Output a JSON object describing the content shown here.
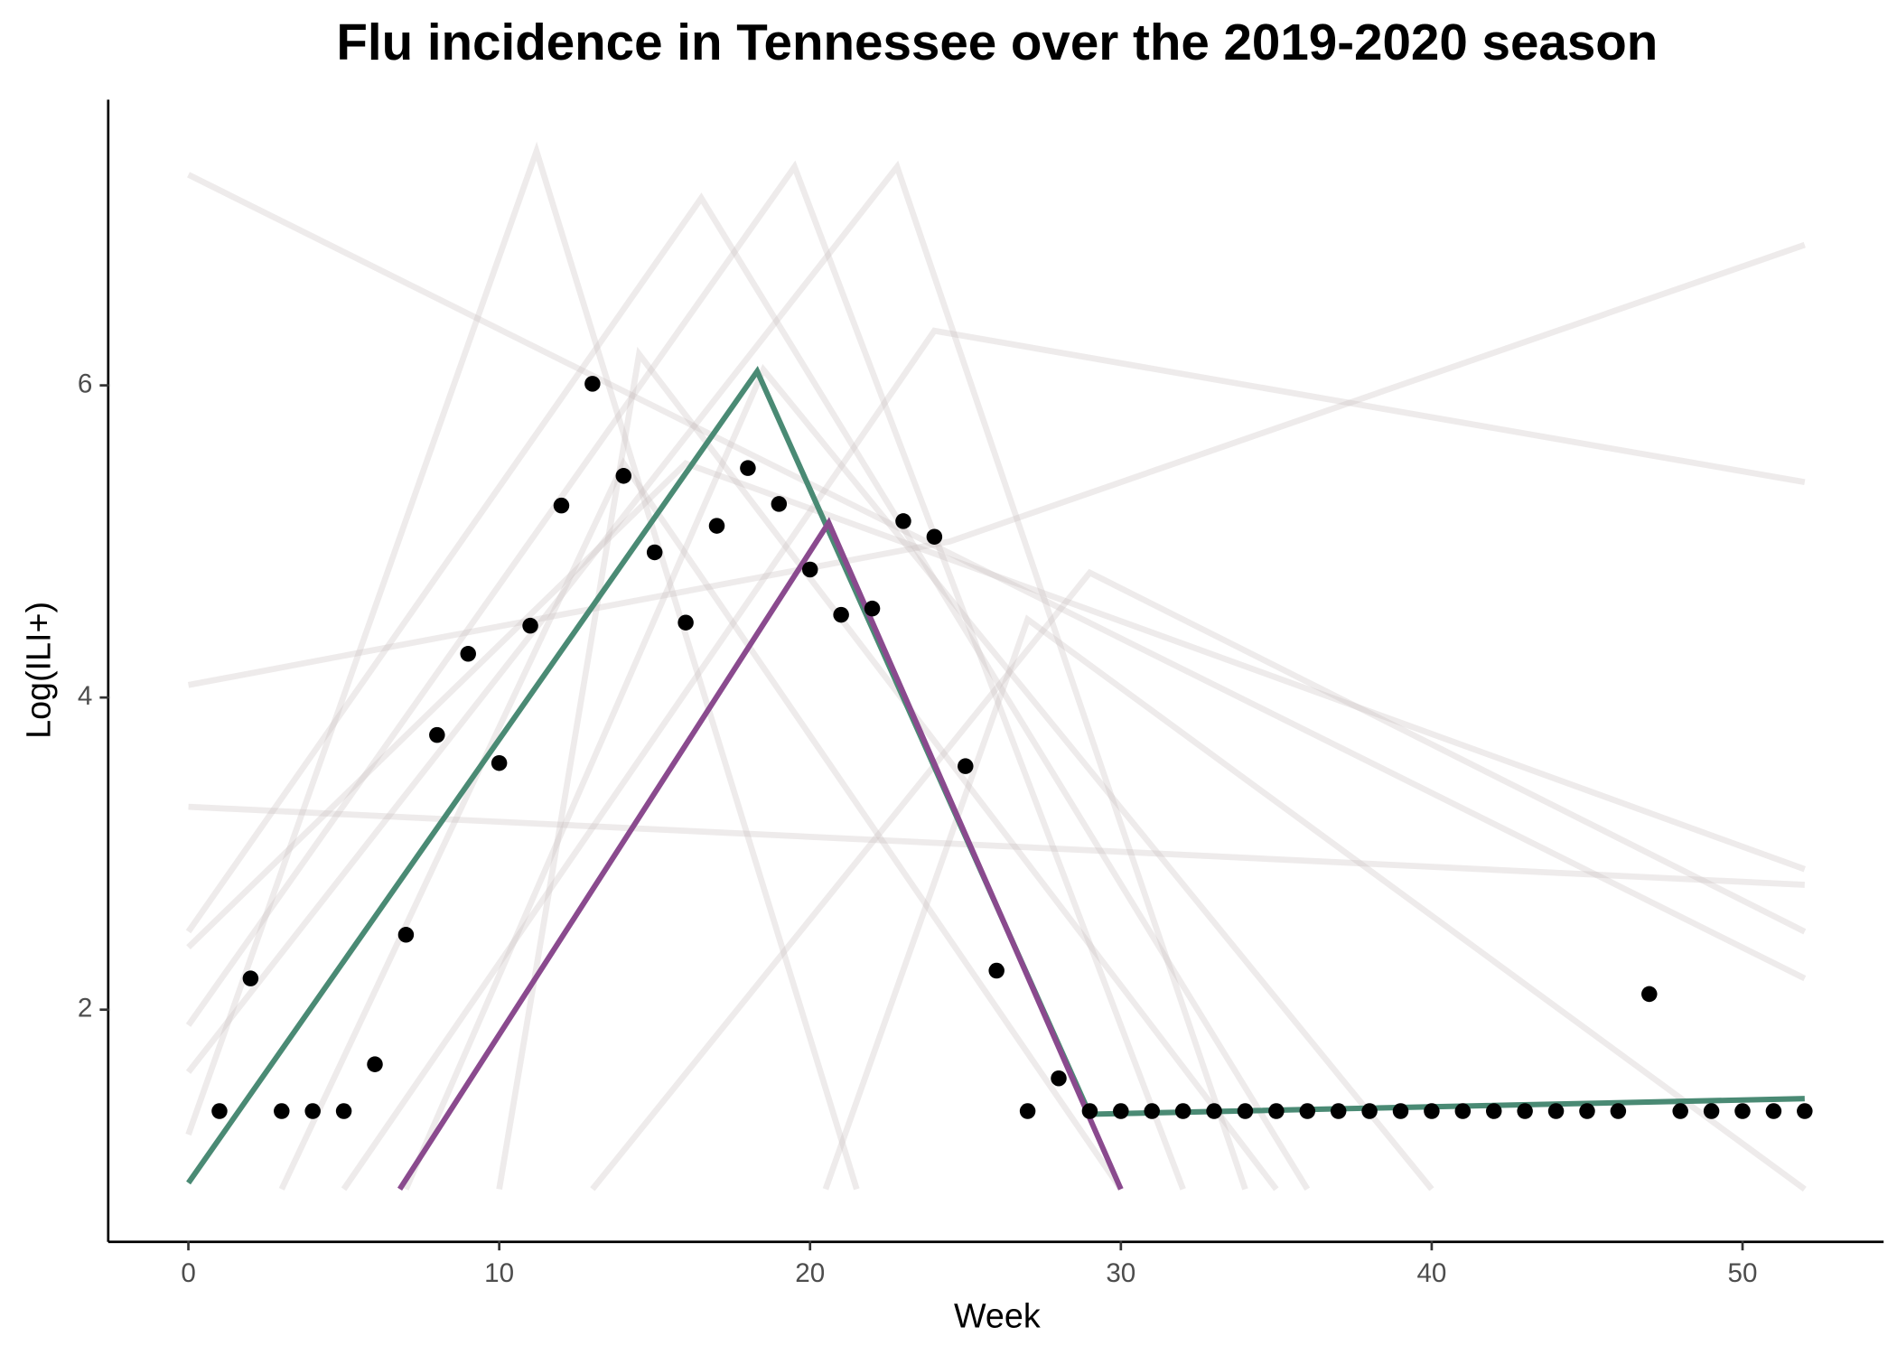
{
  "chart_data": {
    "type": "line",
    "title": "Flu incidence in Tennessee over the 2019-2020 season",
    "x_label": "Week",
    "y_label": "Log(ILI+)",
    "xlim": [
      -2.54,
      54.5
    ],
    "xticks": [
      0,
      10,
      20,
      30,
      40,
      50
    ],
    "ylim": [
      0.52,
      7.83
    ],
    "yticks": [
      2,
      4,
      6
    ],
    "grid": false,
    "points": {
      "color": "#000000",
      "x": [
        1,
        2,
        3,
        4,
        5,
        6,
        7,
        8,
        9,
        10,
        11,
        12,
        13,
        14,
        15,
        16,
        17,
        18,
        19,
        20,
        21,
        22,
        23,
        24,
        25,
        26,
        27,
        28,
        29,
        30,
        31,
        32,
        33,
        34,
        35,
        36,
        37,
        38,
        39,
        40,
        41,
        42,
        43,
        44,
        45,
        46,
        47,
        48,
        49,
        50,
        51,
        52
      ],
      "values": [
        1.35,
        2.2,
        1.35,
        1.35,
        1.35,
        1.65,
        2.48,
        3.76,
        4.28,
        3.58,
        4.46,
        5.23,
        6.01,
        5.42,
        4.93,
        4.48,
        5.1,
        5.47,
        5.24,
        4.82,
        4.53,
        4.57,
        5.13,
        5.03,
        3.56,
        2.25,
        1.35,
        1.56,
        1.35,
        1.35,
        1.35,
        1.35,
        1.35,
        1.35,
        1.35,
        1.35,
        1.35,
        1.35,
        1.35,
        1.35,
        1.35,
        1.35,
        1.35,
        1.35,
        1.35,
        1.35,
        2.1,
        1.35,
        1.35,
        1.35,
        1.35,
        1.35
      ]
    },
    "lines": [
      {
        "color": "#4a8a74",
        "x": [
          0,
          18.3,
          29,
          52
        ],
        "values": [
          0.89,
          6.09,
          1.33,
          1.43
        ]
      },
      {
        "color": "#8a4a8e",
        "x": [
          6.8,
          20.6,
          30
        ],
        "values": [
          0.85,
          5.12,
          0.85
        ]
      }
    ],
    "background_color": "#c8bcbc",
    "background_lines": [
      {
        "x": [
          0,
          11.2,
          21.5
        ],
        "values": [
          1.2,
          7.5,
          0.85
        ]
      },
      {
        "x": [
          0,
          16.5,
          36
        ],
        "values": [
          2.5,
          7.2,
          0.85
        ]
      },
      {
        "x": [
          0,
          19.5,
          32
        ],
        "values": [
          1.9,
          7.4,
          0.85
        ]
      },
      {
        "x": [
          0,
          52
        ],
        "values": [
          7.35,
          2.2
        ]
      },
      {
        "x": [
          0,
          24.5,
          52
        ],
        "values": [
          4.08,
          5.0,
          6.9
        ]
      },
      {
        "x": [
          5,
          24,
          52
        ],
        "values": [
          0.85,
          6.35,
          5.38
        ]
      },
      {
        "x": [
          0,
          16,
          52
        ],
        "values": [
          2.4,
          5.5,
          2.9
        ]
      },
      {
        "x": [
          10,
          14.5,
          35
        ],
        "values": [
          0.85,
          6.2,
          0.85
        ]
      },
      {
        "x": [
          3,
          14,
          30
        ],
        "values": [
          0.85,
          5.5,
          0.85
        ]
      },
      {
        "x": [
          13,
          29,
          52
        ],
        "values": [
          0.85,
          4.8,
          2.5
        ]
      },
      {
        "x": [
          20.5,
          27,
          52
        ],
        "values": [
          0.85,
          4.5,
          0.85
        ]
      },
      {
        "x": [
          0,
          52
        ],
        "values": [
          3.3,
          2.8
        ]
      },
      {
        "x": [
          0,
          22.8,
          34
        ],
        "values": [
          1.6,
          7.4,
          0.85
        ]
      },
      {
        "x": [
          7,
          18.5,
          40
        ],
        "values": [
          0.85,
          6.1,
          0.85
        ]
      }
    ]
  }
}
